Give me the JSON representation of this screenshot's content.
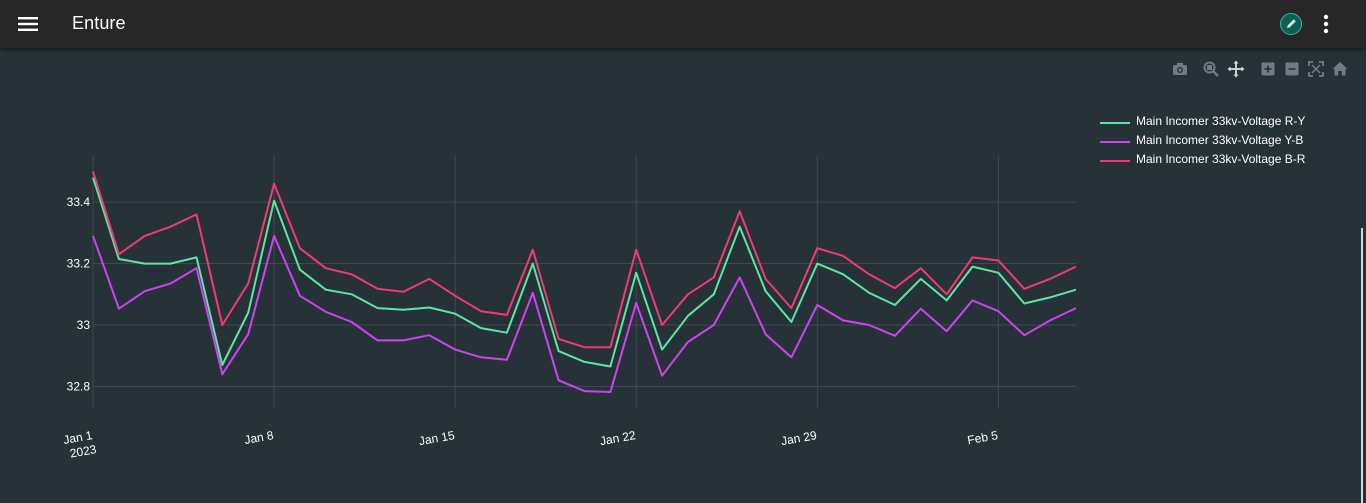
{
  "header": {
    "title": "Enture",
    "menu_icon": "menu-icon",
    "edit_icon": "pencil-icon",
    "more_icon": "more-vert-icon"
  },
  "modebar": {
    "icons": [
      "camera-icon",
      "zoom-icon",
      "pan-icon",
      "zoom-in-icon",
      "zoom-out-icon",
      "autoscale-icon",
      "reset-axes-icon"
    ]
  },
  "colors": {
    "background": "#263238",
    "header": "#272727",
    "grid": "#3d4a51",
    "text": "#ffffff",
    "series": [
      "#5ce6a4",
      "#cc44f0",
      "#f03a77"
    ]
  },
  "chart_data": {
    "type": "line",
    "title": "",
    "xlabel": "",
    "ylabel": "",
    "x": [
      "2023-01-01",
      "2023-01-02",
      "2023-01-03",
      "2023-01-04",
      "2023-01-05",
      "2023-01-06",
      "2023-01-07",
      "2023-01-08",
      "2023-01-09",
      "2023-01-10",
      "2023-01-11",
      "2023-01-12",
      "2023-01-13",
      "2023-01-14",
      "2023-01-15",
      "2023-01-16",
      "2023-01-17",
      "2023-01-18",
      "2023-01-19",
      "2023-01-20",
      "2023-01-21",
      "2023-01-22",
      "2023-01-23",
      "2023-01-24",
      "2023-01-25",
      "2023-01-26",
      "2023-01-27",
      "2023-01-28",
      "2023-01-29",
      "2023-01-30",
      "2023-01-31",
      "2023-02-01",
      "2023-02-02",
      "2023-02-03",
      "2023-02-04",
      "2023-02-05",
      "2023-02-06",
      "2023-02-07",
      "2023-02-08"
    ],
    "x_ticks": [
      {
        "date": "2023-01-01",
        "label": "Jan 1",
        "sublabel": "2023"
      },
      {
        "date": "2023-01-08",
        "label": "Jan 8",
        "sublabel": ""
      },
      {
        "date": "2023-01-15",
        "label": "Jan 15",
        "sublabel": ""
      },
      {
        "date": "2023-01-22",
        "label": "Jan 22",
        "sublabel": ""
      },
      {
        "date": "2023-01-29",
        "label": "Jan 29",
        "sublabel": ""
      },
      {
        "date": "2023-02-05",
        "label": "Feb 5",
        "sublabel": ""
      }
    ],
    "y_ticks": [
      32.8,
      33,
      33.2,
      33.4
    ],
    "y_tick_labels": [
      "32.8",
      "33",
      "33.2",
      "33.4"
    ],
    "ylim": [
      32.73,
      33.55
    ],
    "grid": true,
    "legend_position": "right",
    "series": [
      {
        "name": "Main Incomer 33kv-Voltage R-Y",
        "values": [
          33.48,
          33.215,
          33.2,
          33.2,
          33.22,
          32.87,
          33.04,
          33.405,
          33.18,
          33.115,
          33.1,
          33.055,
          33.05,
          33.057,
          33.037,
          32.99,
          32.975,
          33.2,
          32.915,
          32.88,
          32.865,
          33.17,
          32.92,
          33.03,
          33.1,
          33.32,
          33.11,
          33.01,
          33.2,
          33.165,
          33.105,
          33.065,
          33.15,
          33.08,
          33.19,
          33.17,
          33.07,
          33.09,
          33.115
        ]
      },
      {
        "name": "Main Incomer 33kv-Voltage Y-B",
        "values": [
          33.29,
          33.053,
          33.11,
          33.135,
          33.185,
          32.84,
          32.97,
          33.29,
          33.095,
          33.043,
          33.01,
          32.95,
          32.95,
          32.967,
          32.92,
          32.895,
          32.887,
          33.105,
          32.82,
          32.785,
          32.782,
          33.072,
          32.835,
          32.945,
          33.0,
          33.155,
          32.97,
          32.895,
          33.065,
          33.015,
          33.0,
          32.965,
          33.053,
          32.98,
          33.08,
          33.045,
          32.967,
          33.015,
          33.055
        ]
      },
      {
        "name": "Main Incomer 33kv-Voltage B-R",
        "values": [
          33.5,
          33.23,
          33.29,
          33.32,
          33.36,
          33.0,
          33.135,
          33.46,
          33.25,
          33.185,
          33.165,
          33.118,
          33.108,
          33.15,
          33.095,
          33.045,
          33.033,
          33.245,
          32.955,
          32.928,
          32.928,
          33.245,
          33.0,
          33.1,
          33.155,
          33.37,
          33.15,
          33.055,
          33.25,
          33.225,
          33.165,
          33.12,
          33.185,
          33.1,
          33.22,
          33.21,
          33.118,
          33.15,
          33.19
        ]
      }
    ]
  }
}
